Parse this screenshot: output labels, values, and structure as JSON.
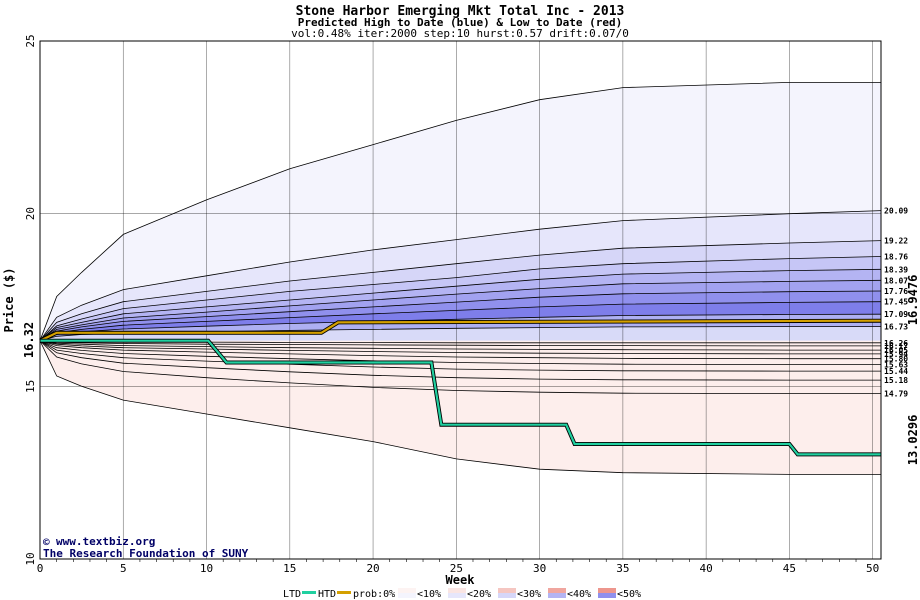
{
  "chart_data": {
    "type": "area",
    "title": "Stone Harbor Emerging Mkt Total Inc - 2013",
    "subtitle": "Predicted High to Date (blue) &  Low to Date (red)",
    "params": "vol:0.48% iter:2000 step:10 hurst:0.57 drift:0.07/0",
    "xlabel": "Week",
    "ylabel": "Price ($)",
    "xlim": [
      0,
      50.5
    ],
    "ylim": [
      10,
      25
    ],
    "x_ticks": [
      "0",
      "5",
      "10",
      "15",
      "20",
      "25",
      "30",
      "35",
      "40",
      "45",
      "50"
    ],
    "y_ticks": [
      "10",
      "15",
      "20",
      "25"
    ],
    "start_price": "16.32",
    "grid": true,
    "upper_bands": [
      {
        "label": "",
        "values": [
          16.32,
          17.6,
          18.3,
          19.4,
          20.4,
          21.3,
          22.0,
          22.7,
          23.3,
          23.65,
          23.8,
          23.8
        ]
      },
      {
        "label": "20.09",
        "values": [
          16.32,
          17.0,
          17.35,
          17.8,
          18.2,
          18.6,
          18.95,
          19.25,
          19.55,
          19.8,
          20.0,
          20.09
        ]
      },
      {
        "label": "19.22",
        "values": [
          16.32,
          16.85,
          17.1,
          17.45,
          17.75,
          18.05,
          18.3,
          18.55,
          18.8,
          19.0,
          19.15,
          19.22
        ]
      },
      {
        "label": "18.76",
        "values": [
          16.32,
          16.75,
          16.95,
          17.25,
          17.5,
          17.75,
          17.95,
          18.15,
          18.4,
          18.55,
          18.7,
          18.76
        ]
      },
      {
        "label": "18.39",
        "values": [
          16.32,
          16.7,
          16.85,
          17.1,
          17.3,
          17.5,
          17.7,
          17.9,
          18.1,
          18.25,
          18.35,
          18.39
        ]
      },
      {
        "label": "18.07",
        "values": [
          16.32,
          16.65,
          16.78,
          16.98,
          17.15,
          17.33,
          17.5,
          17.67,
          17.83,
          17.97,
          18.04,
          18.07
        ]
      },
      {
        "label": "17.76",
        "values": [
          16.32,
          16.6,
          16.72,
          16.88,
          17.02,
          17.16,
          17.3,
          17.44,
          17.58,
          17.68,
          17.74,
          17.76
        ]
      },
      {
        "label": "17.45",
        "values": [
          16.32,
          16.55,
          16.65,
          16.77,
          16.88,
          16.99,
          17.1,
          17.2,
          17.3,
          17.38,
          17.43,
          17.45
        ]
      },
      {
        "label": "17.09",
        "values": [
          16.32,
          16.5,
          16.58,
          16.66,
          16.74,
          16.82,
          16.88,
          16.94,
          17.0,
          17.05,
          17.08,
          17.09
        ]
      },
      {
        "label": "16.73",
        "values": [
          16.32,
          16.45,
          16.5,
          16.54,
          16.58,
          16.62,
          16.65,
          16.68,
          16.7,
          16.72,
          16.73,
          16.73
        ]
      }
    ],
    "lower_bands": [
      {
        "label": "16.26",
        "values": [
          16.32,
          16.3,
          16.29,
          16.28,
          16.28,
          16.27,
          16.27,
          16.26,
          16.26,
          16.26,
          16.26,
          16.26
        ]
      },
      {
        "label": "16.17",
        "values": [
          16.32,
          16.28,
          16.26,
          16.24,
          16.22,
          16.21,
          16.2,
          16.19,
          16.18,
          16.18,
          16.17,
          16.17
        ]
      },
      {
        "label": "16.05",
        "values": [
          16.32,
          16.25,
          16.22,
          16.18,
          16.15,
          16.12,
          16.1,
          16.08,
          16.07,
          16.06,
          16.05,
          16.05
        ]
      },
      {
        "label": "15.94",
        "values": [
          16.32,
          16.22,
          16.17,
          16.12,
          16.08,
          16.04,
          16.01,
          15.98,
          15.96,
          15.95,
          15.94,
          15.94
        ]
      },
      {
        "label": "15.80",
        "values": [
          16.32,
          16.18,
          16.12,
          16.05,
          15.99,
          15.94,
          15.89,
          15.85,
          15.83,
          15.81,
          15.8,
          15.8
        ]
      },
      {
        "label": "15.63",
        "values": [
          16.32,
          16.12,
          16.04,
          15.95,
          15.87,
          15.8,
          15.74,
          15.69,
          15.66,
          15.64,
          15.63,
          15.63
        ]
      },
      {
        "label": "15.44",
        "values": [
          16.32,
          16.05,
          15.95,
          15.83,
          15.73,
          15.64,
          15.56,
          15.5,
          15.47,
          15.45,
          15.44,
          15.44
        ]
      },
      {
        "label": "15.18",
        "values": [
          16.32,
          15.97,
          15.83,
          15.67,
          15.54,
          15.42,
          15.32,
          15.25,
          15.21,
          15.19,
          15.18,
          15.18
        ]
      },
      {
        "label": "14.79",
        "values": [
          16.32,
          15.85,
          15.65,
          15.43,
          15.25,
          15.1,
          14.97,
          14.88,
          14.83,
          14.8,
          14.79,
          14.79
        ]
      },
      {
        "label": "",
        "values": [
          16.32,
          15.3,
          15.0,
          14.6,
          14.2,
          13.8,
          13.4,
          12.9,
          12.6,
          12.5,
          12.45,
          12.45
        ]
      }
    ],
    "band_x": [
      0,
      1,
      2.5,
      5,
      10,
      15,
      20,
      25,
      30,
      35,
      45,
      50.5
    ],
    "htd": {
      "name": "HTD",
      "x": [
        0,
        1,
        16.9,
        17.9,
        50.5
      ],
      "y": [
        16.32,
        16.55,
        16.55,
        16.85,
        16.9
      ]
    },
    "ltd": {
      "name": "LTD",
      "x": [
        0,
        10.1,
        11.2,
        23.5,
        24.1,
        31.6,
        32.1,
        45.0,
        45.5,
        50.5
      ],
      "y": [
        16.32,
        16.32,
        15.69,
        15.69,
        13.89,
        13.89,
        13.33,
        13.33,
        13.03,
        13.03
      ]
    },
    "htd_final": "16.9476",
    "ltd_final": "13.0296",
    "legend": {
      "ltd_label": "LTD",
      "htd_label": "HTD",
      "prob_label": "prob:0%",
      "items": [
        "<10%",
        "<20%",
        "<30%",
        "<40%",
        "<50%"
      ]
    },
    "credit_line1": "www.textbiz.org",
    "credit_line2": "The Research Foundation of SUNY",
    "colors": {
      "upper_bands": [
        "#f4f4fd",
        "#e6e6fb",
        "#d6d6f8",
        "#c6c6f6",
        "#b4b4f3",
        "#a2a2f0",
        "#9090ed",
        "#7e7eea",
        "#aeb0f2",
        "#d8daf8"
      ],
      "lower_bands": [
        "#fdf3f2",
        "#fae5e3",
        "#f8d6d2",
        "#f5c6c1",
        "#f2b6b0",
        "#f0a69f",
        "#ed968d",
        "#f3b8b2",
        "#f8d8d4",
        "#fdeeec"
      ],
      "htd": "#d4a000",
      "ltd": "#20d0a0",
      "htd_label": "#a08000",
      "ltd_label": "#108060",
      "grid": "#000000"
    }
  }
}
